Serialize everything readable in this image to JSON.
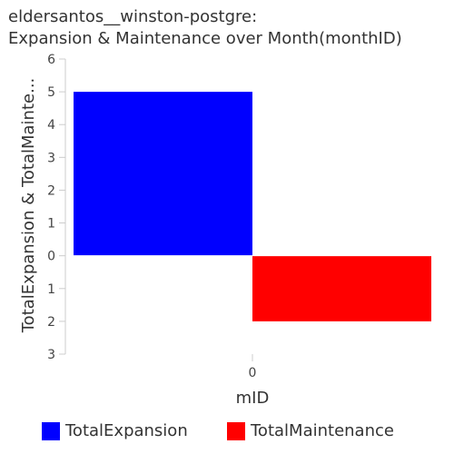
{
  "chart_data": {
    "type": "bar",
    "title_line1": "eldersantos__winston-postgre:",
    "title_line2": "Expansion & Maintenance over Month(monthID)",
    "xlabel": "mID",
    "ylabel": "TotalExpansion & TotalMainte...",
    "categories": [
      "0"
    ],
    "ylim": [
      -3,
      6
    ],
    "yticks": [
      {
        "value": 6,
        "label": "6"
      },
      {
        "value": 5,
        "label": "5"
      },
      {
        "value": 4,
        "label": "4"
      },
      {
        "value": 3,
        "label": "3"
      },
      {
        "value": 2,
        "label": "2"
      },
      {
        "value": 1,
        "label": "1"
      },
      {
        "value": 0,
        "label": "0"
      },
      {
        "value": -1,
        "label": "1"
      },
      {
        "value": -2,
        "label": "2"
      },
      {
        "value": -3,
        "label": "3"
      }
    ],
    "series": [
      {
        "name": "TotalExpansion",
        "values": [
          5
        ],
        "color": "#0000ff"
      },
      {
        "name": "TotalMaintenance",
        "values": [
          -2
        ],
        "color": "#ff0000"
      }
    ],
    "legend_position": "bottom"
  }
}
